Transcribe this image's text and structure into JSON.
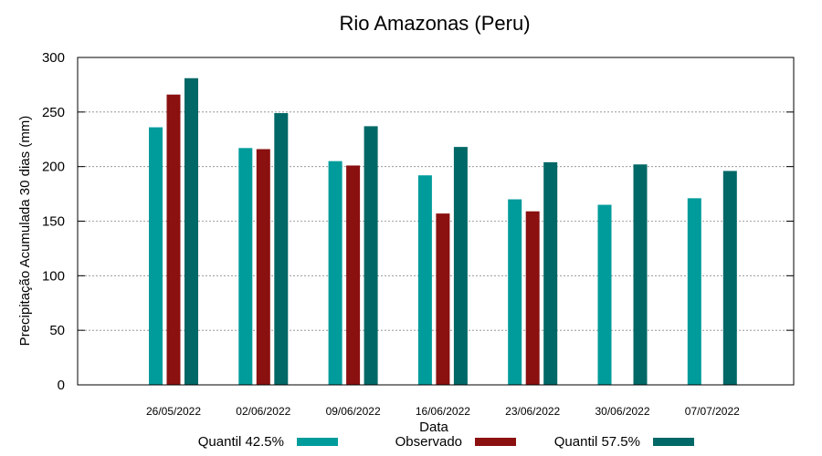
{
  "chart_data": {
    "type": "bar",
    "title": "Rio Amazonas (Peru)",
    "xlabel": "Data",
    "ylabel": "Precipitação Acumulada 30 dias (mm)",
    "ylim": [
      0,
      300
    ],
    "yticks": [
      0,
      50,
      100,
      150,
      200,
      250,
      300
    ],
    "grid": true,
    "legend_position": "bottom",
    "categories": [
      "26/05/2022",
      "02/06/2022",
      "09/06/2022",
      "16/06/2022",
      "23/06/2022",
      "30/06/2022",
      "07/07/2022"
    ],
    "series": [
      {
        "name": "Quantil 42.5%",
        "color": "#009b9b",
        "values": [
          236,
          217,
          205,
          192,
          170,
          165,
          171
        ]
      },
      {
        "name": "Observado",
        "color": "#8b1010",
        "values": [
          266,
          216,
          201,
          157,
          159,
          null,
          null
        ]
      },
      {
        "name": "Quantil 57.5%",
        "color": "#006866",
        "values": [
          281,
          249,
          237,
          218,
          204,
          202,
          196
        ]
      }
    ]
  }
}
